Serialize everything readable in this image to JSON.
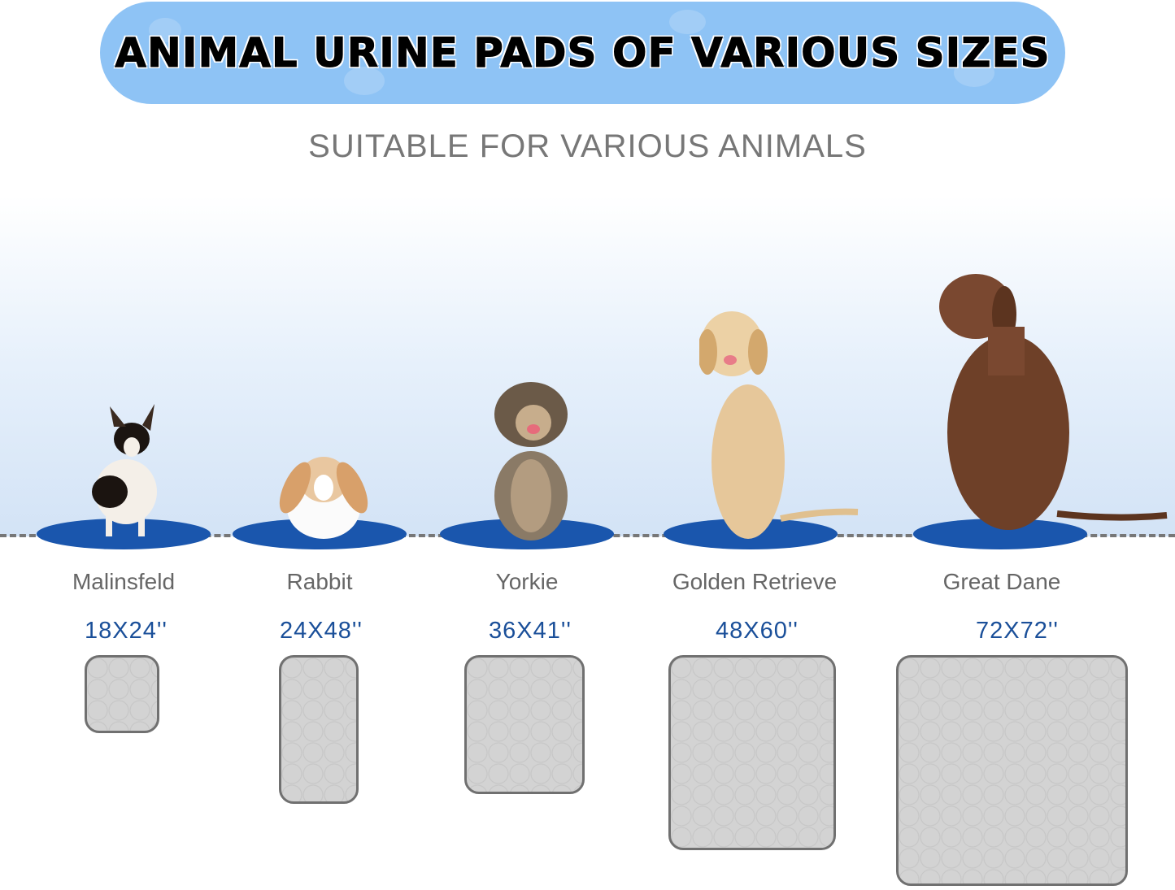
{
  "banner": {
    "title": "ANIMAL URINE PADS OF VARIOUS SIZES",
    "color": "#8ec3f5"
  },
  "subtitle": "SUITABLE FOR VARIOUS ANIMALS",
  "accent_color": "#1a4f99",
  "mat_color": "#1a56ad",
  "items": [
    {
      "animal": "Malinsfeld",
      "size": "18X24''"
    },
    {
      "animal": "Rabbit",
      "size": "24X48''"
    },
    {
      "animal": "Yorkie",
      "size": "36X41''"
    },
    {
      "animal": "Golden Retrieve",
      "size": "48X60''"
    },
    {
      "animal": "Great Dane",
      "size": "72X72''"
    }
  ]
}
